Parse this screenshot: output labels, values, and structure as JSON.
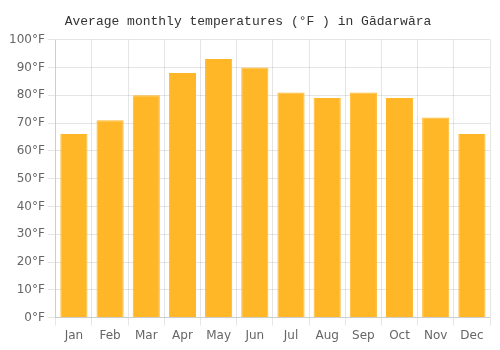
{
  "chart_data": {
    "type": "bar",
    "title": "Average monthly temperatures (°F ) in Gādarwāra",
    "categories": [
      "Jan",
      "Feb",
      "Mar",
      "Apr",
      "May",
      "Jun",
      "Jul",
      "Aug",
      "Sep",
      "Oct",
      "Nov",
      "Dec"
    ],
    "values": [
      66,
      71,
      80,
      88,
      93,
      90,
      81,
      79,
      81,
      79,
      72,
      66
    ],
    "color": "#FFB627",
    "ylim": [
      0,
      100
    ],
    "yticks": [
      {
        "value": 0,
        "label": "0°F"
      },
      {
        "value": 10,
        "label": "10°F"
      },
      {
        "value": 20,
        "label": "20°F"
      },
      {
        "value": 30,
        "label": "30°F"
      },
      {
        "value": 40,
        "label": "40°F"
      },
      {
        "value": 50,
        "label": "50°F"
      },
      {
        "value": 60,
        "label": "60°F"
      },
      {
        "value": 70,
        "label": "70°F"
      },
      {
        "value": 80,
        "label": "80°F"
      },
      {
        "value": 90,
        "label": "90°F"
      },
      {
        "value": 100,
        "label": "100°F"
      }
    ],
    "grid": true
  }
}
